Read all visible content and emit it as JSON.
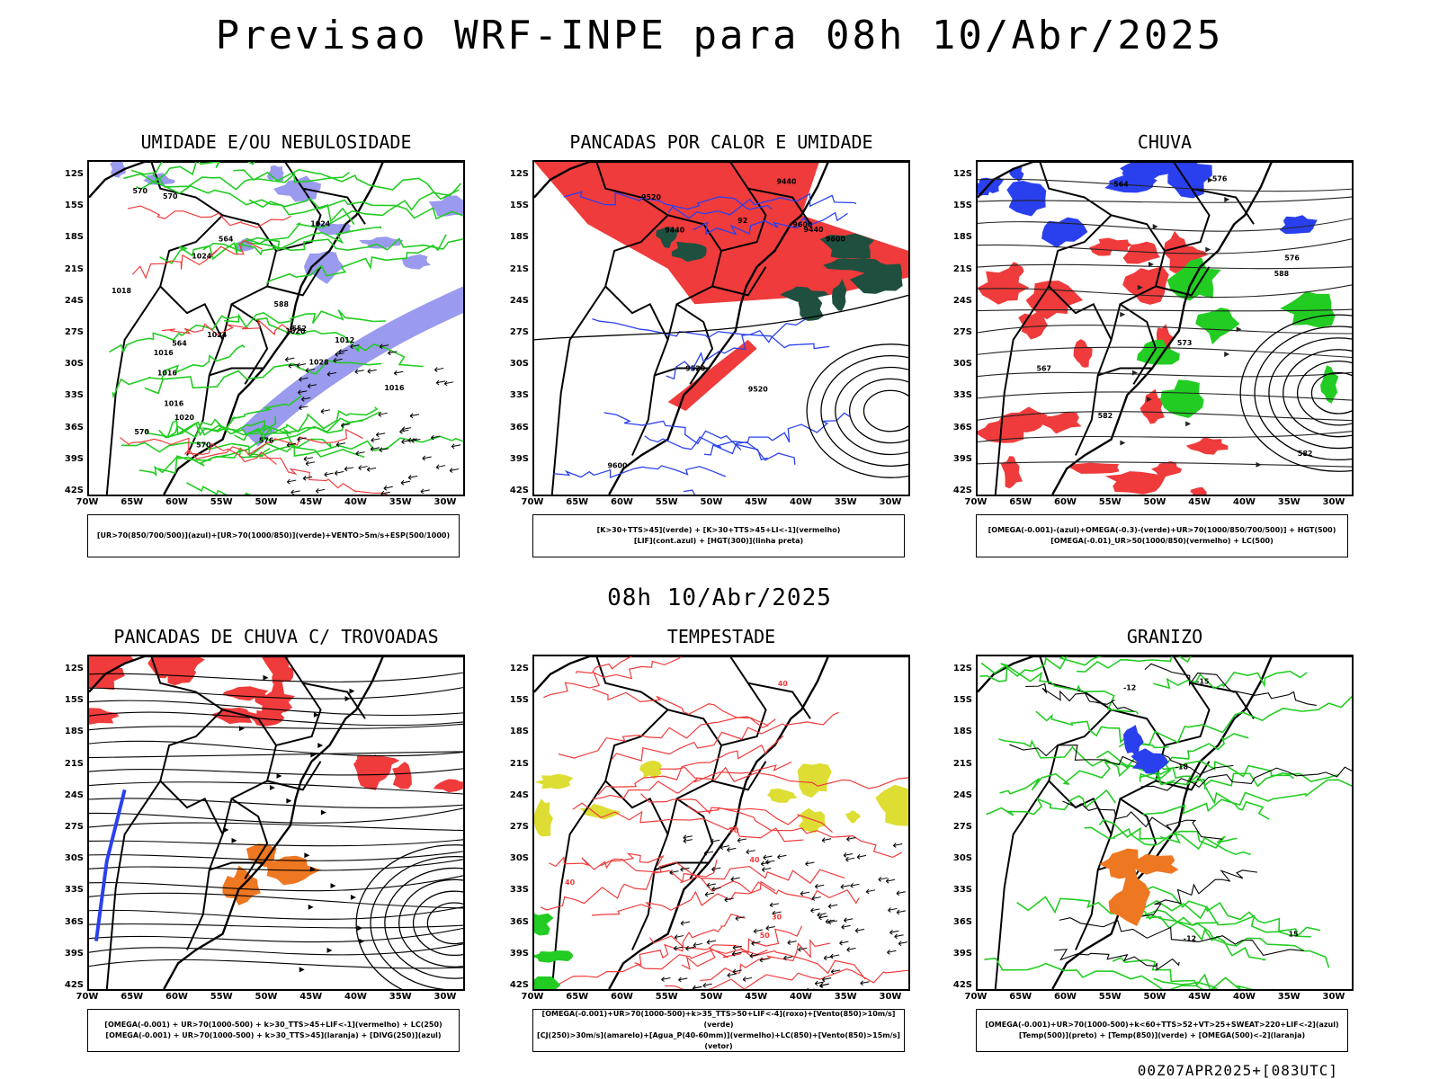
{
  "header": {
    "title": "Previsao WRF-INPE  para 08h 10/Abr/2025",
    "mid_title": "08h 10/Abr/2025",
    "footer": "00Z07APR2025+[083UTC]"
  },
  "axes": {
    "lat_labels": [
      "12S",
      "15S",
      "18S",
      "21S",
      "24S",
      "27S",
      "30S",
      "33S",
      "36S",
      "39S",
      "42S"
    ],
    "lon_labels": [
      "70W",
      "65W",
      "60W",
      "55W",
      "50W",
      "45W",
      "40W",
      "35W",
      "30W"
    ]
  },
  "colors": {
    "blue_fill": "#9a9aee",
    "green": "#22cc22",
    "red": "#ef3b3b",
    "dark_green": "#1f4f3f",
    "blue": "#2a40ee",
    "yellow": "#dddd33",
    "orange": "#ee7722"
  },
  "panels": [
    {
      "title": "UMIDADE E/OU NEBULOSIDADE",
      "legend": [
        "[UR>70(850/700/500)](azul)+[UR>70(1000/850)](verde)+VENTO>5m/s+ESP(500/1000)"
      ],
      "contour_labels": [
        "1024",
        "1020",
        "1016",
        "1012",
        "1016",
        "1016",
        "1016",
        "1018",
        "1020",
        "1024",
        "1028",
        "1024",
        "570",
        "570",
        "570",
        "570",
        "576",
        "564",
        "552",
        "588",
        "564"
      ]
    },
    {
      "title": "PANCADAS POR CALOR E UMIDADE",
      "legend": [
        "[K>30+TTS>45](verde) + [K>30+TTS>45+LI<-1](vermelho)",
        "[LIF](cont.azul) + [HGT(300)](linha preta)"
      ],
      "contour_labels": [
        "9600",
        "9600",
        "9600",
        "9520",
        "9520",
        "9520",
        "9440",
        "9440",
        "9440",
        "92"
      ]
    },
    {
      "title": "CHUVA",
      "legend": [
        "[OMEGA(-0.001)-(azul)+OMEGA(-0.3)-(verde)+UR>70(1000/850/700/500)] + HGT(500)",
        "[OMEGA(-0.01)_UR>50(1000/850)(vermelho) + LC(500)"
      ],
      "contour_labels": [
        "588",
        "582",
        "576",
        "576",
        "573",
        "582",
        "567",
        "564"
      ]
    },
    {
      "title": "PANCADAS DE CHUVA C/ TROVOADAS",
      "legend": [
        "[OMEGA(-0.001) + UR>70(1000-500) + k>30_TTS>45+LIF<-1](vermelho) + LC(250)",
        "[OMEGA(-0.001) + UR>70(1000-500) + k>30_TTS>45](laranja) + [DIVG(250)](azul)"
      ],
      "contour_labels": []
    },
    {
      "title": "TEMPESTADE",
      "legend": [
        "[OMEGA(-0.001)+UR>70(1000-500)+k>35_TTS>50+LIF<-4](roxo)+[Vento(850)>10m/s](verde)",
        "[CJ(250)>30m/s](amarelo)+[Agua_P(40-60mm)](vermelho)+LC(850)+[Vento(850)>15m/s](vetor)"
      ],
      "contour_labels": [
        "30",
        "30",
        "40",
        "40",
        "50",
        "40"
      ]
    },
    {
      "title": "GRANIZO",
      "legend": [
        "[OMEGA(-0.001)+UR>70(1000-500)+k<60+TTS>52+VT>25+SWEAT>220+LIF<-2](azul)",
        "[Temp(500)](preto) + [Temp(850)](verde) + [OMEGA(500)<-2](laranja)"
      ],
      "contour_labels": [
        "-12",
        "-12",
        "-15",
        "-18",
        "15"
      ]
    }
  ]
}
